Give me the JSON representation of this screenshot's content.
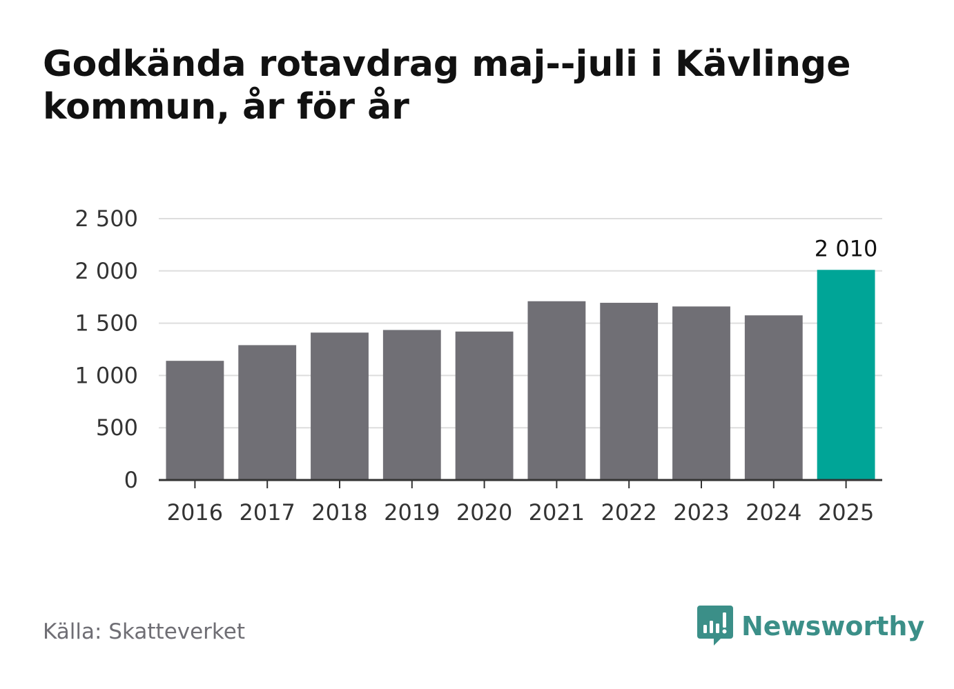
{
  "chart_data": {
    "type": "bar",
    "title": "Godkända rotavdrag maj--juli i Kävlinge kommun, år för år",
    "categories": [
      "2016",
      "2017",
      "2018",
      "2019",
      "2020",
      "2021",
      "2022",
      "2023",
      "2024",
      "2025"
    ],
    "values": [
      1140,
      1290,
      1410,
      1435,
      1420,
      1710,
      1695,
      1660,
      1575,
      2010
    ],
    "ylim": [
      0,
      2500
    ],
    "yticks": [
      0,
      500,
      1000,
      1500,
      2000,
      2500
    ],
    "ytick_labels": [
      "0",
      "500",
      "1 000",
      "1 500",
      "2 000",
      "2 500"
    ],
    "highlight_label": "2 010",
    "highlight_index": 9,
    "grid": true,
    "colors": {
      "bar": "#706f75",
      "highlight": "#00a597",
      "grid": "#dddddd",
      "axis": "#333333"
    }
  },
  "footer": {
    "source": "Källa: Skatteverket",
    "brand": "Newsworthy",
    "brand_icon": "newsworthy-logo-icon",
    "brand_color": "#3b8f88"
  }
}
